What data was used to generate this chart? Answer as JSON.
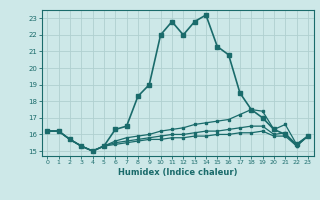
{
  "xlabel": "Humidex (Indice chaleur)",
  "background_color": "#cde8e8",
  "grid_color": "#b0d0d0",
  "line_color": "#1a6b6b",
  "xlim": [
    -0.5,
    23.5
  ],
  "ylim": [
    14.7,
    23.5
  ],
  "yticks": [
    15,
    16,
    17,
    18,
    19,
    20,
    21,
    22,
    23
  ],
  "xticks": [
    0,
    1,
    2,
    3,
    4,
    5,
    6,
    7,
    8,
    9,
    10,
    11,
    12,
    13,
    14,
    15,
    16,
    17,
    18,
    19,
    20,
    21,
    22,
    23
  ],
  "series": [
    {
      "x": [
        0,
        1,
        2,
        3,
        4,
        5,
        6,
        7,
        8,
        9,
        10,
        11,
        12,
        13,
        14,
        15,
        16,
        17,
        18,
        19,
        20,
        21,
        22,
        23
      ],
      "y": [
        16.2,
        16.2,
        15.7,
        15.3,
        15.0,
        15.3,
        16.3,
        16.5,
        18.3,
        19.0,
        22.0,
        22.8,
        22.0,
        22.8,
        23.2,
        21.3,
        20.8,
        18.5,
        17.5,
        17.0,
        16.3,
        16.0,
        15.4,
        15.9
      ],
      "lw": 1.2,
      "marker_size": 2.5
    },
    {
      "x": [
        0,
        1,
        2,
        3,
        4,
        5,
        6,
        7,
        8,
        9,
        10,
        11,
        12,
        13,
        14,
        15,
        16,
        17,
        18,
        19,
        20,
        21,
        22,
        23
      ],
      "y": [
        16.2,
        16.2,
        15.7,
        15.3,
        15.0,
        15.3,
        15.6,
        15.8,
        15.9,
        16.0,
        16.2,
        16.3,
        16.4,
        16.6,
        16.7,
        16.8,
        16.9,
        17.2,
        17.5,
        17.4,
        16.3,
        16.6,
        15.4,
        15.9
      ],
      "lw": 0.9,
      "marker_size": 1.8
    },
    {
      "x": [
        0,
        1,
        2,
        3,
        4,
        5,
        6,
        7,
        8,
        9,
        10,
        11,
        12,
        13,
        14,
        15,
        16,
        17,
        18,
        19,
        20,
        21,
        22,
        23
      ],
      "y": [
        16.2,
        16.2,
        15.7,
        15.3,
        15.0,
        15.3,
        15.5,
        15.6,
        15.7,
        15.8,
        15.9,
        16.0,
        16.0,
        16.1,
        16.2,
        16.2,
        16.3,
        16.4,
        16.5,
        16.5,
        16.0,
        16.1,
        15.3,
        15.9
      ],
      "lw": 0.9,
      "marker_size": 1.8
    },
    {
      "x": [
        0,
        1,
        2,
        3,
        4,
        5,
        6,
        7,
        8,
        9,
        10,
        11,
        12,
        13,
        14,
        15,
        16,
        17,
        18,
        19,
        20,
        21,
        22,
        23
      ],
      "y": [
        16.2,
        16.2,
        15.7,
        15.3,
        15.0,
        15.3,
        15.4,
        15.5,
        15.6,
        15.7,
        15.7,
        15.8,
        15.8,
        15.9,
        15.9,
        16.0,
        16.0,
        16.1,
        16.1,
        16.2,
        15.9,
        15.9,
        15.3,
        15.9
      ],
      "lw": 0.9,
      "marker_size": 1.8
    }
  ]
}
